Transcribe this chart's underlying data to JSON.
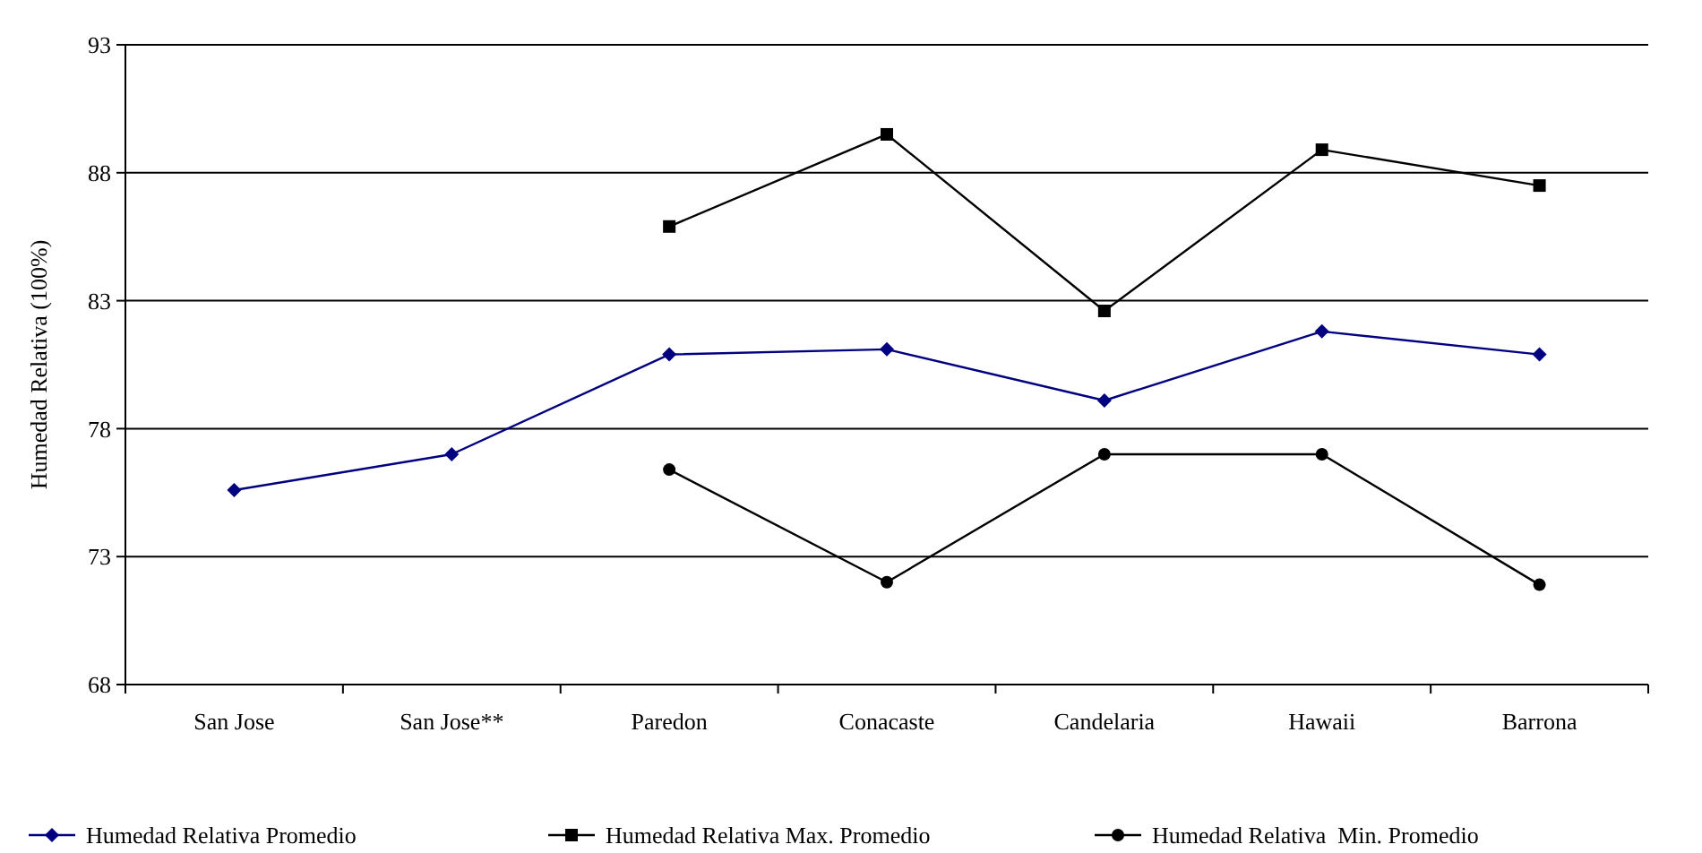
{
  "chart_data": {
    "type": "line",
    "ylabel": "Humedad Relativa (100%)",
    "categories": [
      "San Jose",
      "San Jose**",
      "Paredon",
      "Conacaste",
      "Candelaria",
      "Hawaii",
      "Barrona"
    ],
    "series": [
      {
        "name": "Humedad Relativa Promedio",
        "color": "#000080",
        "marker": "diamond",
        "values": [
          75.6,
          77.0,
          80.9,
          81.1,
          79.1,
          81.8,
          80.9
        ]
      },
      {
        "name": "Humedad Relativa Max. Promedio",
        "color": "#000000",
        "marker": "square",
        "values": [
          null,
          null,
          85.9,
          89.5,
          82.6,
          88.9,
          87.5
        ]
      },
      {
        "name": "Humedad Relativa  Min. Promedio",
        "color": "#000000",
        "marker": "circle",
        "values": [
          null,
          null,
          76.4,
          72.0,
          77.0,
          77.0,
          71.9
        ]
      }
    ],
    "ylim": [
      68,
      93
    ],
    "yticks": [
      68,
      73,
      78,
      83,
      88,
      93
    ],
    "grid": "y",
    "legend": "bottom",
    "line_style": "solid"
  }
}
